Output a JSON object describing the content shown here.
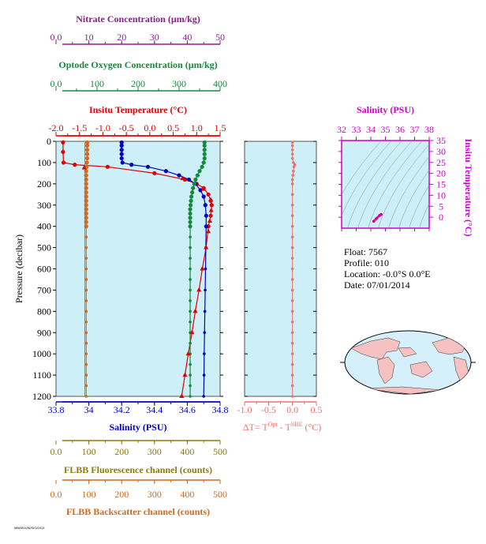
{
  "float_info": {
    "float": "Float:  7567",
    "profile": "Profile:  010",
    "location": "Location:  -0.0°S   0.0°E",
    "date": "Date:  07/01/2014"
  },
  "footer_code": "MBARI/UW/SIO/2014",
  "colors": {
    "nitrate": "#8b1f8b",
    "oxygen": "#158a3a",
    "temperature": "#e00000",
    "salinity": "#0000c0",
    "fluorescence": "#8b7a10",
    "backscatter": "#d2691e",
    "delta_t": "#f07070",
    "ts_axis": "#cc00cc",
    "panel_bg": "#cdeff7"
  },
  "chart_data": [
    {
      "type": "line",
      "panel": "main-profile",
      "ylabel": "Pressure (decibar)",
      "ylim": [
        1200,
        0
      ],
      "yticks": [
        0,
        100,
        200,
        300,
        400,
        500,
        600,
        700,
        800,
        900,
        1000,
        1100,
        1200
      ],
      "grid": false,
      "axes": [
        {
          "key": "nitrate",
          "label": "Nitrate Concentration (µm/kg)",
          "range": [
            0,
            50
          ],
          "ticks": [
            0,
            10,
            20,
            30,
            40,
            50
          ],
          "position": "top"
        },
        {
          "key": "oxygen",
          "label": "Optode Oxygen Concentration (µm/kg)",
          "range": [
            0,
            400
          ],
          "ticks": [
            0,
            100,
            200,
            300,
            400
          ],
          "position": "top"
        },
        {
          "key": "temperature",
          "label": "Insitu Temperature (°C)",
          "range": [
            -2.0,
            1.5
          ],
          "ticks": [
            -2.0,
            -1.5,
            -1.0,
            -0.5,
            0.0,
            0.5,
            1.0,
            1.5
          ],
          "position": "top"
        },
        {
          "key": "salinity",
          "label": "Salinity (PSU)",
          "range": [
            33.8,
            34.8
          ],
          "ticks": [
            33.8,
            34.0,
            34.2,
            34.4,
            34.6,
            34.8
          ],
          "position": "bottom"
        },
        {
          "key": "fluorescence",
          "label": "FLBB Fluorescence channel (counts)",
          "range": [
            0,
            500
          ],
          "ticks": [
            0,
            100,
            200,
            300,
            400,
            500
          ],
          "position": "bottom"
        },
        {
          "key": "backscatter",
          "label": "FLBB Backscatter channel (counts)",
          "range": [
            0,
            500
          ],
          "ticks": [
            0,
            100,
            200,
            300,
            400,
            500
          ],
          "position": "bottom"
        }
      ],
      "series": [
        {
          "key": "temperature",
          "pressure": [
            5,
            50,
            100,
            110,
            120,
            150,
            180,
            200,
            220,
            250,
            280,
            300,
            350,
            400,
            500,
            600,
            700,
            800,
            900,
            1000,
            1100,
            1200
          ],
          "values": [
            -1.85,
            -1.85,
            -1.84,
            -1.6,
            -0.9,
            0.1,
            0.75,
            1.0,
            1.15,
            1.25,
            1.3,
            1.32,
            1.3,
            1.25,
            1.2,
            1.12,
            1.05,
            0.97,
            0.9,
            0.82,
            0.75,
            0.68
          ]
        },
        {
          "key": "salinity",
          "pressure": [
            5,
            20,
            40,
            60,
            80,
            100,
            110,
            120,
            140,
            160,
            180,
            200,
            230,
            260,
            300,
            350,
            400,
            500,
            600,
            700,
            800,
            900,
            1000,
            1100,
            1200
          ],
          "values": [
            34.2,
            34.2,
            34.2,
            34.2,
            34.2,
            34.205,
            34.26,
            34.36,
            34.47,
            34.55,
            34.61,
            34.65,
            34.68,
            34.7,
            34.71,
            34.715,
            34.715,
            34.713,
            34.711,
            34.709,
            34.707,
            34.705,
            34.703,
            34.702,
            34.7
          ]
        },
        {
          "key": "oxygen",
          "pressure": [
            5,
            20,
            40,
            60,
            80,
            100,
            120,
            140,
            160,
            180,
            200,
            220,
            240,
            260,
            280,
            300,
            320,
            340,
            360,
            380,
            400,
            450,
            500,
            550,
            600,
            650,
            700,
            750,
            800,
            850,
            900,
            950,
            1000,
            1050,
            1100,
            1150,
            1200
          ],
          "values": [
            362,
            362,
            362,
            362,
            362,
            360,
            356,
            350,
            345,
            340,
            337,
            334,
            332,
            330,
            329,
            328,
            327,
            327,
            327,
            327,
            327,
            327,
            327,
            327,
            327,
            327,
            327,
            327,
            327,
            327,
            327,
            327,
            327,
            327,
            327,
            327,
            327
          ]
        },
        {
          "key": "backscatter",
          "pressure": [
            5,
            20,
            40,
            60,
            80,
            100,
            120,
            140,
            160,
            180,
            200,
            220,
            240,
            260,
            280,
            300,
            320,
            340,
            360,
            380,
            400,
            450,
            500,
            550,
            600,
            650,
            700,
            750,
            800,
            850,
            900,
            950,
            1000,
            1050,
            1100,
            1150,
            1200
          ],
          "values": [
            95,
            95,
            95,
            95,
            95,
            94,
            93,
            92,
            92,
            92,
            92,
            92,
            92,
            92,
            92,
            92,
            92,
            92,
            92,
            92,
            92,
            92,
            92,
            92,
            92,
            92,
            92,
            92,
            92,
            92,
            92,
            92,
            92,
            92,
            92,
            92,
            92
          ]
        },
        {
          "key": "fluorescence",
          "pressure": [
            5,
            20,
            40,
            60,
            80,
            100,
            120,
            140,
            160,
            180,
            200,
            220,
            240,
            260,
            280,
            300,
            320,
            340,
            360,
            380,
            400,
            450,
            500,
            550,
            600,
            650,
            700,
            750,
            800,
            850,
            900,
            950,
            1000,
            1050,
            1100,
            1150,
            1200
          ],
          "values": [
            88,
            88,
            88,
            88,
            88,
            88,
            88,
            88,
            88,
            88,
            88,
            88,
            88,
            88,
            88,
            88,
            88,
            88,
            88,
            88,
            88,
            88,
            88,
            88,
            88,
            88,
            88,
            88,
            88,
            88,
            88,
            88,
            88,
            88,
            88,
            88,
            88
          ]
        },
        {
          "key": "temperature_ref",
          "pressure": [
            125,
            175,
            225,
            275,
            325,
            375,
            425,
            500,
            600,
            700,
            800,
            900,
            1000,
            1100,
            1200
          ],
          "values": [
            -1.4,
            0.7,
            1.15,
            1.3,
            1.31,
            1.28,
            1.25,
            1.2,
            1.12,
            1.05,
            0.97,
            0.9,
            0.82,
            0.75,
            0.68
          ]
        }
      ]
    },
    {
      "type": "line",
      "panel": "delta-t",
      "xlabel": "ΔT= T^Opt - T^SBE (°C)",
      "xlabel_main": "ΔT= T",
      "xlabel_sup1": "Opt",
      "xlabel_mid": " - T",
      "xlabel_sup2": "SBE",
      "xlabel_tail": " (°C)",
      "xlim": [
        -1.0,
        0.5
      ],
      "xticks": [
        -1.0,
        -0.5,
        0.0,
        0.5
      ],
      "ylim": [
        1200,
        0
      ],
      "series": [
        {
          "key": "delta_t",
          "pressure": [
            5,
            20,
            40,
            60,
            80,
            100,
            110,
            120,
            140,
            160,
            180,
            200,
            250,
            300,
            350,
            400,
            450,
            500,
            550,
            600,
            650,
            700,
            750,
            800,
            850,
            900,
            950,
            1000,
            1050,
            1100,
            1150,
            1200
          ],
          "values": [
            0.0,
            0.0,
            0.0,
            0.0,
            0.0,
            0.02,
            0.05,
            0.03,
            0.02,
            0.01,
            0.0,
            0.0,
            0.0,
            0.0,
            0.0,
            0.0,
            0.0,
            0.0,
            0.0,
            0.0,
            0.0,
            0.0,
            0.0,
            0.0,
            0.0,
            0.0,
            0.0,
            0.0,
            0.0,
            0.0,
            0.0,
            0.0
          ]
        }
      ]
    },
    {
      "type": "scatter",
      "panel": "ts-diagram",
      "title": "Salinity (PSU)",
      "ylabel": "Insitu Temperature (°C)",
      "xlim": [
        32,
        38
      ],
      "xticks": [
        32,
        33,
        34,
        35,
        36,
        37,
        38
      ],
      "ylim": [
        -5,
        35
      ],
      "yticks": [
        0,
        5,
        10,
        15,
        20,
        25,
        30,
        35
      ],
      "points": {
        "salinity": [
          34.2,
          34.4,
          34.6,
          34.7,
          34.71
        ],
        "temperature": [
          -1.85,
          -0.5,
          0.8,
          1.2,
          1.3
        ]
      }
    }
  ]
}
